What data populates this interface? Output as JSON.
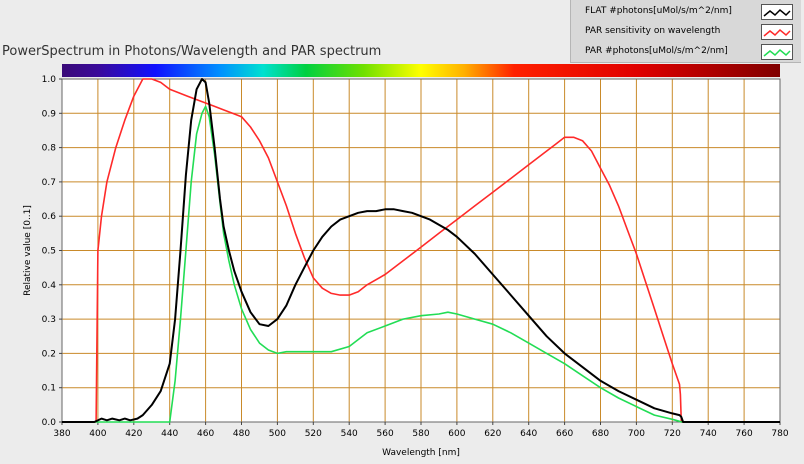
{
  "chart_data": {
    "type": "line",
    "title": "PowerSpectrum in Photons/Wavelength and PAR spectrum",
    "xlabel": "Wavelength [nm]",
    "ylabel": "Relative value [0..1]",
    "xlim": [
      380,
      780
    ],
    "ylim": [
      0,
      1.0
    ],
    "xticks": [
      380,
      400,
      420,
      440,
      460,
      480,
      500,
      520,
      540,
      560,
      580,
      600,
      620,
      640,
      660,
      680,
      700,
      720,
      740,
      760,
      780
    ],
    "yticks": [
      0.0,
      0.1,
      0.2,
      0.3,
      0.4,
      0.5,
      0.6,
      0.7,
      0.8,
      0.9,
      1.0
    ],
    "xtick_labels": [
      "380",
      "400",
      "420",
      "440",
      "460",
      "480",
      "500",
      "520",
      "540",
      "560",
      "580",
      "600",
      "620",
      "640",
      "660",
      "680",
      "700",
      "720",
      "740",
      "760",
      "780"
    ],
    "ytick_labels": [
      "0.0",
      "0.1",
      "0.2",
      "0.3",
      "0.4",
      "0.5",
      "0.6",
      "0.7",
      "0.8",
      "0.9",
      "1.0"
    ],
    "grid": true,
    "legend_position": "top-right",
    "series": [
      {
        "name": "FLAT #photons[uMol/s/m^2/nm]",
        "color": "#000000",
        "x": [
          380,
          398,
          402,
          405,
          408,
          412,
          415,
          418,
          422,
          425,
          430,
          435,
          440,
          443,
          446,
          449,
          452,
          455,
          458,
          460,
          462,
          465,
          468,
          470,
          473,
          476,
          480,
          485,
          490,
          495,
          500,
          505,
          510,
          515,
          520,
          525,
          530,
          535,
          540,
          545,
          550,
          555,
          560,
          565,
          570,
          575,
          580,
          585,
          590,
          595,
          600,
          610,
          620,
          630,
          640,
          650,
          660,
          670,
          680,
          690,
          700,
          710,
          720,
          724,
          725,
          726,
          780
        ],
        "y": [
          0,
          0,
          0.01,
          0.005,
          0.01,
          0.005,
          0.01,
          0.005,
          0.01,
          0.02,
          0.05,
          0.09,
          0.17,
          0.3,
          0.5,
          0.72,
          0.88,
          0.97,
          1.0,
          0.99,
          0.93,
          0.8,
          0.65,
          0.57,
          0.5,
          0.44,
          0.38,
          0.32,
          0.285,
          0.28,
          0.3,
          0.34,
          0.4,
          0.45,
          0.5,
          0.54,
          0.57,
          0.59,
          0.6,
          0.61,
          0.615,
          0.615,
          0.62,
          0.62,
          0.615,
          0.61,
          0.6,
          0.59,
          0.575,
          0.56,
          0.54,
          0.49,
          0.43,
          0.37,
          0.31,
          0.25,
          0.2,
          0.16,
          0.12,
          0.09,
          0.065,
          0.04,
          0.025,
          0.02,
          0.015,
          0,
          0
        ]
      },
      {
        "name": "PAR sensitivity on wavelength",
        "color": "#ff2a2a",
        "x": [
          380,
          399,
          399.5,
          400,
          402,
          405,
          410,
          415,
          420,
          425,
          430,
          435,
          440,
          445,
          450,
          455,
          460,
          465,
          470,
          475,
          480,
          485,
          490,
          495,
          500,
          505,
          510,
          515,
          520,
          525,
          530,
          535,
          540,
          545,
          550,
          560,
          570,
          580,
          590,
          600,
          610,
          620,
          630,
          640,
          650,
          655,
          660,
          665,
          670,
          675,
          680,
          685,
          690,
          695,
          700,
          705,
          710,
          715,
          720,
          724,
          724.5,
          725,
          780
        ],
        "y": [
          0,
          0,
          0.25,
          0.5,
          0.6,
          0.7,
          0.8,
          0.88,
          0.95,
          1.0,
          1.0,
          0.99,
          0.97,
          0.96,
          0.95,
          0.94,
          0.93,
          0.92,
          0.91,
          0.9,
          0.89,
          0.86,
          0.82,
          0.77,
          0.7,
          0.63,
          0.55,
          0.48,
          0.42,
          0.39,
          0.375,
          0.37,
          0.37,
          0.38,
          0.4,
          0.43,
          0.47,
          0.51,
          0.55,
          0.59,
          0.63,
          0.67,
          0.71,
          0.75,
          0.79,
          0.81,
          0.83,
          0.83,
          0.82,
          0.79,
          0.74,
          0.69,
          0.63,
          0.56,
          0.49,
          0.41,
          0.33,
          0.25,
          0.17,
          0.11,
          0.08,
          0,
          0
        ]
      },
      {
        "name": "PAR #photons[uMol/s/m^2/nm]",
        "color": "#22dd55",
        "x": [
          380,
          440,
          443,
          446,
          449,
          452,
          455,
          458,
          460,
          462,
          465,
          468,
          470,
          473,
          476,
          480,
          485,
          490,
          495,
          500,
          505,
          510,
          520,
          530,
          540,
          550,
          560,
          570,
          580,
          590,
          595,
          600,
          610,
          620,
          630,
          640,
          650,
          660,
          670,
          680,
          690,
          700,
          710,
          720,
          724,
          725,
          780
        ],
        "y": [
          0,
          0,
          0.12,
          0.3,
          0.5,
          0.7,
          0.84,
          0.9,
          0.92,
          0.89,
          0.78,
          0.64,
          0.55,
          0.47,
          0.4,
          0.33,
          0.27,
          0.23,
          0.21,
          0.2,
          0.205,
          0.205,
          0.205,
          0.205,
          0.22,
          0.26,
          0.28,
          0.3,
          0.31,
          0.315,
          0.32,
          0.315,
          0.3,
          0.285,
          0.26,
          0.23,
          0.2,
          0.17,
          0.135,
          0.1,
          0.07,
          0.045,
          0.02,
          0.008,
          0.002,
          0,
          0
        ]
      }
    ]
  }
}
